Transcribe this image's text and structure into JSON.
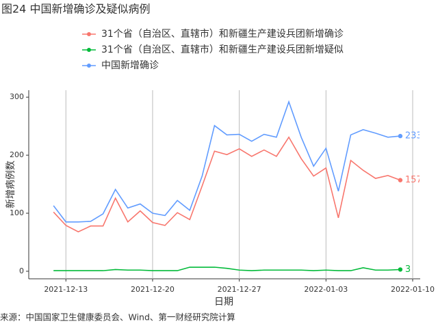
{
  "chart_data": {
    "type": "line",
    "title": "图24 中国新增确诊及疑似病例",
    "y_label": "新增病例数",
    "x_label": "日期",
    "source": "来源：中国国家卫生健康委员会、Wind、第一财经研究院计算",
    "x": [
      "2021-12-12",
      "2021-12-13",
      "2021-12-14",
      "2021-12-15",
      "2021-12-16",
      "2021-12-17",
      "2021-12-18",
      "2021-12-19",
      "2021-12-20",
      "2021-12-21",
      "2021-12-22",
      "2021-12-23",
      "2021-12-24",
      "2021-12-25",
      "2021-12-26",
      "2021-12-27",
      "2021-12-28",
      "2021-12-29",
      "2021-12-30",
      "2021-12-31",
      "2022-01-01",
      "2022-01-02",
      "2022-01-03",
      "2022-01-04",
      "2022-01-05",
      "2022-01-06",
      "2022-01-07",
      "2022-01-08",
      "2022-01-09"
    ],
    "series": [
      {
        "name": "31个省（自治区、直辖市）和新疆生产建设兵团新增确诊",
        "color": "#f8766d",
        "values": [
          102,
          79,
          68,
          78,
          78,
          126,
          85,
          104,
          84,
          79,
          101,
          89,
          147,
          207,
          201,
          211,
          198,
          209,
          198,
          231,
          194,
          164,
          178,
          92,
          191,
          174,
          160,
          165,
          157
        ]
      },
      {
        "name": "31个省（自治区、直辖市）和新疆生产建设兵团新增疑似",
        "color": "#00ba38",
        "values": [
          1,
          1,
          1,
          1,
          1,
          3,
          2,
          2,
          1,
          1,
          1,
          7,
          7,
          7,
          5,
          2,
          1,
          2,
          2,
          2,
          2,
          1,
          2,
          1,
          1,
          6,
          2,
          2,
          3
        ]
      },
      {
        "name": "中国新增确诊",
        "color": "#619cff",
        "values": [
          113,
          85,
          85,
          86,
          99,
          141,
          109,
          116,
          100,
          96,
          122,
          105,
          164,
          251,
          235,
          236,
          224,
          236,
          231,
          292,
          231,
          181,
          212,
          138,
          235,
          244,
          238,
          231,
          233
        ]
      }
    ],
    "xlim": [
      "2021-12-10",
      "2022-01-10"
    ],
    "xticks": [
      "2021-12-13",
      "2021-12-20",
      "2021-12-27",
      "2022-01-03",
      "2022-01-10"
    ],
    "ylim": [
      -13,
      312
    ],
    "yticks": [
      0,
      100,
      200,
      300
    ],
    "grid": true
  }
}
